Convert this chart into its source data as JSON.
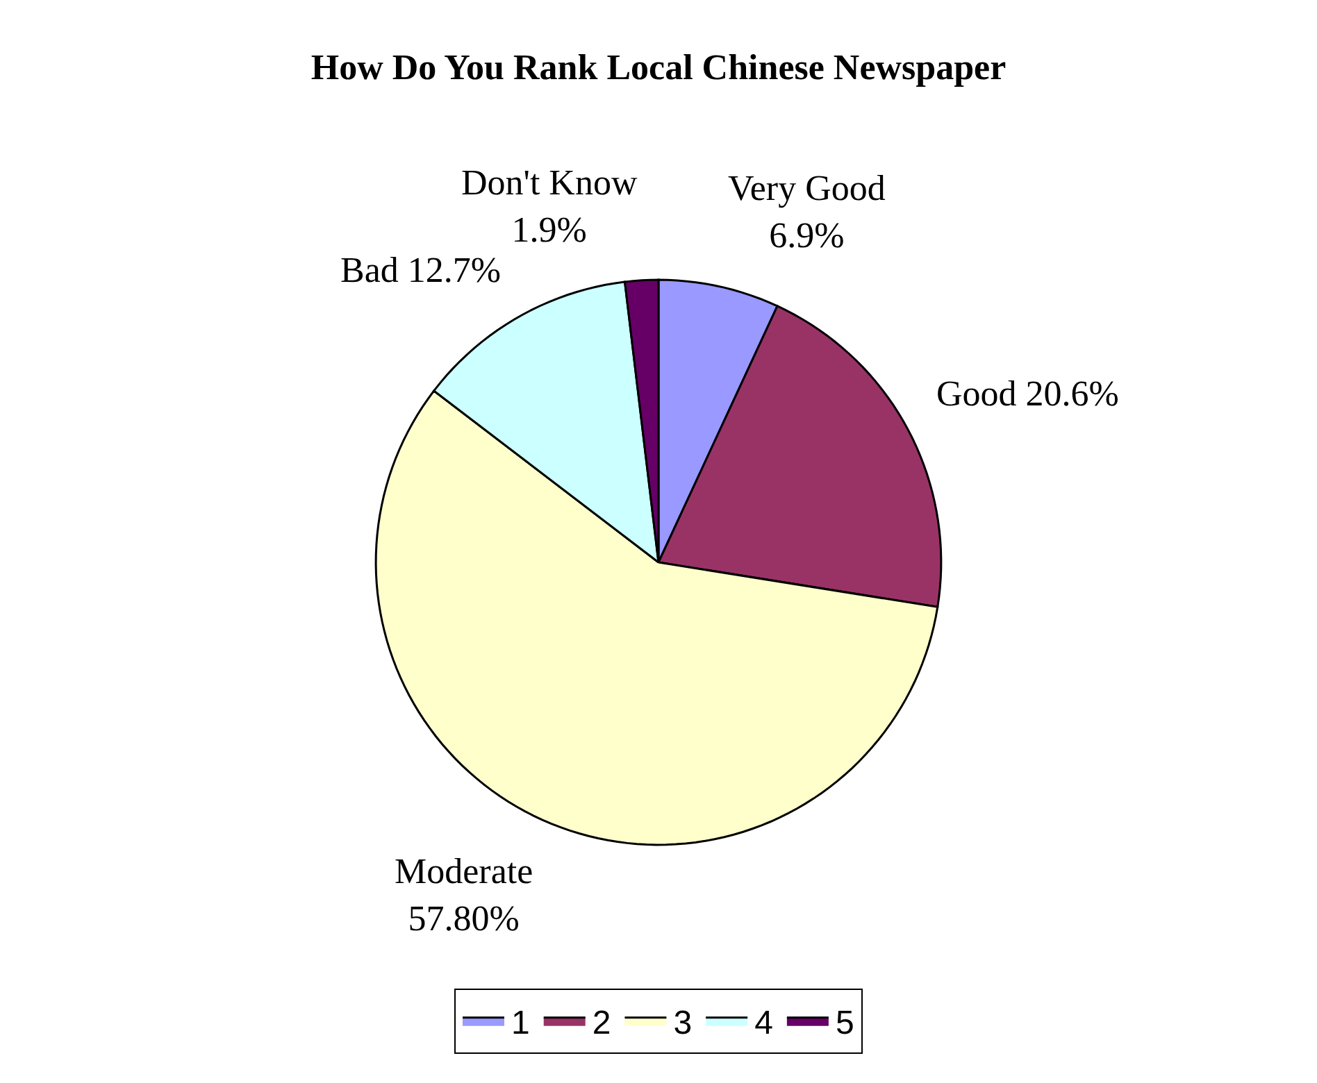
{
  "chart_data": {
    "type": "pie",
    "title": "How Do You Rank Local Chinese Newspaper",
    "categories": [
      "1",
      "2",
      "3",
      "4",
      "5"
    ],
    "values": [
      6.9,
      20.6,
      57.8,
      12.7,
      1.9
    ],
    "colors": [
      "#9999ff",
      "#993366",
      "#ffffcc",
      "#ccffff",
      "#660066"
    ],
    "value_labels": [
      "Very Good\n6.9%",
      "Good 20.6%",
      "Moderate\n57.80%",
      "Bad 12.7%",
      "Don't Know\n1.9%"
    ],
    "legend": "bottom"
  }
}
